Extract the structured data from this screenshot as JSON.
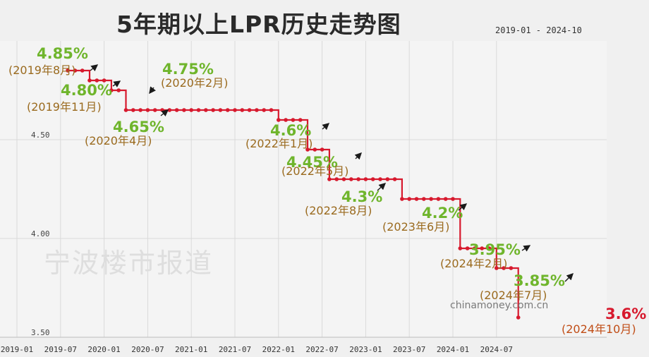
{
  "header": {
    "title": "5年期以上LPR历史走势图",
    "range": "2019-01 - 2024-10"
  },
  "watermark": "宁波楼市报道",
  "source": "chinamoney.com.cn",
  "colors": {
    "line": "#d7192d",
    "rate_label": "#6fb52c",
    "date_label": "#9a6a1e",
    "arrow": "#1a1a1a",
    "background": "#f0f0f0"
  },
  "chart_data": {
    "type": "line",
    "title": "5年期以上LPR历史走势图",
    "xlabel": "",
    "ylabel": "",
    "x_range": [
      "2019-01",
      "2024-10"
    ],
    "ylim": [
      3.5,
      5.0
    ],
    "y_ticks": [
      "4.50",
      "4.00",
      "3.50"
    ],
    "x_ticks": [
      "2019-01",
      "2019-07",
      "2020-01",
      "2020-07",
      "2021-01",
      "2021-07",
      "2022-01",
      "2022-07",
      "2023-01",
      "2023-07",
      "2024-01",
      "2024-07"
    ],
    "grid": true,
    "series": [
      {
        "points": [
          {
            "date": "2019-08",
            "value": 4.85
          },
          {
            "date": "2019-11",
            "value": 4.8
          },
          {
            "date": "2020-02",
            "value": 4.75
          },
          {
            "date": "2020-04",
            "value": 4.65
          },
          {
            "date": "2022-01",
            "value": 4.6
          },
          {
            "date": "2022-05",
            "value": 4.45
          },
          {
            "date": "2022-08",
            "value": 4.3
          },
          {
            "date": "2023-06",
            "value": 4.2
          },
          {
            "date": "2024-02",
            "value": 3.95
          },
          {
            "date": "2024-07",
            "value": 3.85
          },
          {
            "date": "2024-10",
            "value": 3.6
          }
        ]
      }
    ],
    "annotations": [
      {
        "rate": "4.85%",
        "date": "(2019年8月)",
        "arrow": "ne"
      },
      {
        "rate": "4.80%",
        "date": "(2019年11月)",
        "arrow": "ne"
      },
      {
        "rate": "4.75%",
        "date": "(2020年2月)",
        "arrow": "sw"
      },
      {
        "rate": "4.65%",
        "date": "(2020年4月)",
        "arrow": "ne"
      },
      {
        "rate": "4.6%",
        "date": "(2022年1月)",
        "arrow": "ne"
      },
      {
        "rate": "4.45%",
        "date": "(2022年5月)",
        "arrow": "ne"
      },
      {
        "rate": "4.3%",
        "date": "(2022年8月)",
        "arrow": "ne"
      },
      {
        "rate": "4.2%",
        "date": "(2023年6月)",
        "arrow": "ne"
      },
      {
        "rate": "3.95%",
        "date": "(2024年2月)",
        "arrow": "ne"
      },
      {
        "rate": "3.85%",
        "date": "(2024年7月)",
        "arrow": "ne"
      },
      {
        "rate": "3.6%",
        "date": "(2024年10月)",
        "arrow": "none"
      }
    ]
  }
}
